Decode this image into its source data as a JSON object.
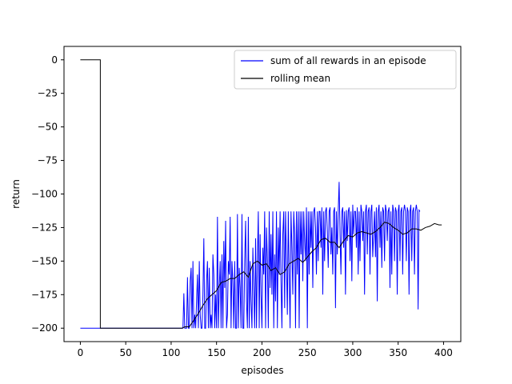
{
  "chart_data": {
    "type": "line",
    "title": "",
    "xlabel": "episodes",
    "ylabel": "return",
    "xlim": [
      -18,
      419
    ],
    "ylim": [
      -210,
      10
    ],
    "xticks": [
      0,
      50,
      100,
      150,
      200,
      250,
      300,
      350,
      400
    ],
    "yticks": [
      0,
      -25,
      -50,
      -75,
      -100,
      -125,
      -150,
      -175,
      -200
    ],
    "grid": false,
    "legend_position": "top-right",
    "series": [
      {
        "name": "sum of all rewards in an episode",
        "color": "#0000ff",
        "x_start": 0,
        "values": [
          -200,
          -200,
          -200,
          -200,
          -200,
          -200,
          -200,
          -200,
          -200,
          -200,
          -200,
          -200,
          -200,
          -200,
          -200,
          -200,
          -200,
          -200,
          -200,
          -200,
          -200,
          -200,
          -200,
          -200,
          -200,
          -200,
          -200,
          -200,
          -200,
          -200,
          -200,
          -200,
          -200,
          -200,
          -200,
          -200,
          -200,
          -200,
          -200,
          -200,
          -200,
          -200,
          -200,
          -200,
          -200,
          -200,
          -200,
          -200,
          -200,
          -200,
          -200,
          -200,
          -200,
          -200,
          -200,
          -200,
          -200,
          -200,
          -200,
          -200,
          -200,
          -200,
          -200,
          -200,
          -200,
          -200,
          -200,
          -200,
          -200,
          -200,
          -200,
          -200,
          -200,
          -200,
          -200,
          -200,
          -200,
          -200,
          -200,
          -200,
          -200,
          -200,
          -200,
          -200,
          -200,
          -200,
          -200,
          -200,
          -200,
          -200,
          -200,
          -200,
          -200,
          -200,
          -200,
          -200,
          -200,
          -200,
          -200,
          -200,
          -200,
          -200,
          -200,
          -200,
          -200,
          -200,
          -200,
          -200,
          -200,
          -200,
          -200,
          -200,
          -200,
          -200,
          -174,
          -200,
          -200,
          -200,
          -162,
          -200,
          -200,
          -165,
          -155,
          -200,
          -150,
          -200,
          -190,
          -200,
          -180,
          -160,
          -200,
          -150,
          -190,
          -200,
          -200,
          -175,
          -133,
          -200,
          -200,
          -165,
          -150,
          -200,
          -155,
          -200,
          -190,
          -200,
          -145,
          -160,
          -200,
          -175,
          -200,
          -117,
          -200,
          -170,
          -150,
          -200,
          -145,
          -200,
          -135,
          -170,
          -120,
          -200,
          -190,
          -150,
          -160,
          -117,
          -200,
          -150,
          -165,
          -200,
          -150,
          -200,
          -200,
          -115,
          -200,
          -155,
          -170,
          -200,
          -115,
          -200,
          -200,
          -150,
          -120,
          -180,
          -200,
          -117,
          -200,
          -150,
          -180,
          -200,
          -140,
          -170,
          -200,
          -133,
          -200,
          -150,
          -113,
          -200,
          -130,
          -175,
          -200,
          -140,
          -160,
          -113,
          -200,
          -125,
          -150,
          -200,
          -113,
          -170,
          -130,
          -175,
          -113,
          -200,
          -145,
          -180,
          -113,
          -200,
          -125,
          -160,
          -113,
          -165,
          -200,
          -130,
          -113,
          -185,
          -113,
          -150,
          -190,
          -113,
          -160,
          -200,
          -113,
          -140,
          -175,
          -113,
          -130,
          -200,
          -113,
          -160,
          -113,
          -200,
          -113,
          -145,
          -113,
          -165,
          -113,
          -135,
          -150,
          -110,
          -200,
          -113,
          -160,
          -113,
          -140,
          -113,
          -170,
          -113,
          -110,
          -125,
          -160,
          -113,
          -150,
          -113,
          -113,
          -140,
          -110,
          -175,
          -113,
          -150,
          -113,
          -110,
          -128,
          -155,
          -113,
          -110,
          -145,
          -125,
          -160,
          -113,
          -110,
          -185,
          -113,
          -145,
          -113,
          -91,
          -130,
          -160,
          -113,
          -110,
          -140,
          -113,
          -175,
          -112,
          -135,
          -113,
          -110,
          -150,
          -113,
          -165,
          -108,
          -130,
          -113,
          -113,
          -140,
          -110,
          -160,
          -113,
          -150,
          -108,
          -113,
          -135,
          -113,
          -175,
          -113,
          -108,
          -145,
          -113,
          -110,
          -160,
          -113,
          -108,
          -147,
          -130,
          -113,
          -147,
          -110,
          -180,
          -113,
          -108,
          -140,
          -113,
          -155,
          -110,
          -113,
          -150,
          -108,
          -113,
          -135,
          -113,
          -110,
          -170,
          -113,
          -160,
          -108,
          -113,
          -150,
          -110,
          -113,
          -175,
          -113,
          -108,
          -150,
          -113,
          -110,
          -160,
          -113,
          -108,
          -113,
          -150,
          -110,
          -113,
          -175,
          -113,
          -108,
          -150,
          -113,
          -110,
          -160,
          -113,
          -108,
          -113,
          -186,
          -112,
          -113
        ],
        "label_name": "sum of all rewards in an episode"
      },
      {
        "name": "rolling mean",
        "color": "#000000",
        "points": [
          [
            0,
            0
          ],
          [
            22,
            0
          ],
          [
            22,
            -200
          ],
          [
            112,
            -200
          ],
          [
            115,
            -199
          ],
          [
            120,
            -199
          ],
          [
            125,
            -194
          ],
          [
            130,
            -189
          ],
          [
            135,
            -183
          ],
          [
            140,
            -178
          ],
          [
            145,
            -175
          ],
          [
            150,
            -172
          ],
          [
            155,
            -166
          ],
          [
            160,
            -165
          ],
          [
            165,
            -163
          ],
          [
            170,
            -163
          ],
          [
            175,
            -160
          ],
          [
            180,
            -158
          ],
          [
            185,
            -162
          ],
          [
            190,
            -152
          ],
          [
            195,
            -150
          ],
          [
            200,
            -153
          ],
          [
            205,
            -152
          ],
          [
            210,
            -157
          ],
          [
            215,
            -155
          ],
          [
            220,
            -160
          ],
          [
            225,
            -158
          ],
          [
            230,
            -152
          ],
          [
            235,
            -150
          ],
          [
            240,
            -148
          ],
          [
            245,
            -151
          ],
          [
            250,
            -147
          ],
          [
            255,
            -143
          ],
          [
            260,
            -140
          ],
          [
            265,
            -134
          ],
          [
            270,
            -133
          ],
          [
            275,
            -136
          ],
          [
            280,
            -136
          ],
          [
            285,
            -140
          ],
          [
            290,
            -135
          ],
          [
            295,
            -131
          ],
          [
            300,
            -132
          ],
          [
            305,
            -129
          ],
          [
            310,
            -128
          ],
          [
            315,
            -129
          ],
          [
            320,
            -130
          ],
          [
            325,
            -128
          ],
          [
            330,
            -125
          ],
          [
            335,
            -121
          ],
          [
            340,
            -122
          ],
          [
            345,
            -125
          ],
          [
            350,
            -127
          ],
          [
            355,
            -130
          ],
          [
            360,
            -129
          ],
          [
            365,
            -126
          ],
          [
            370,
            -126
          ],
          [
            375,
            -127
          ],
          [
            380,
            -125
          ],
          [
            385,
            -124
          ],
          [
            390,
            -122
          ],
          [
            395,
            -123
          ],
          [
            398,
            -123
          ]
        ]
      }
    ]
  }
}
